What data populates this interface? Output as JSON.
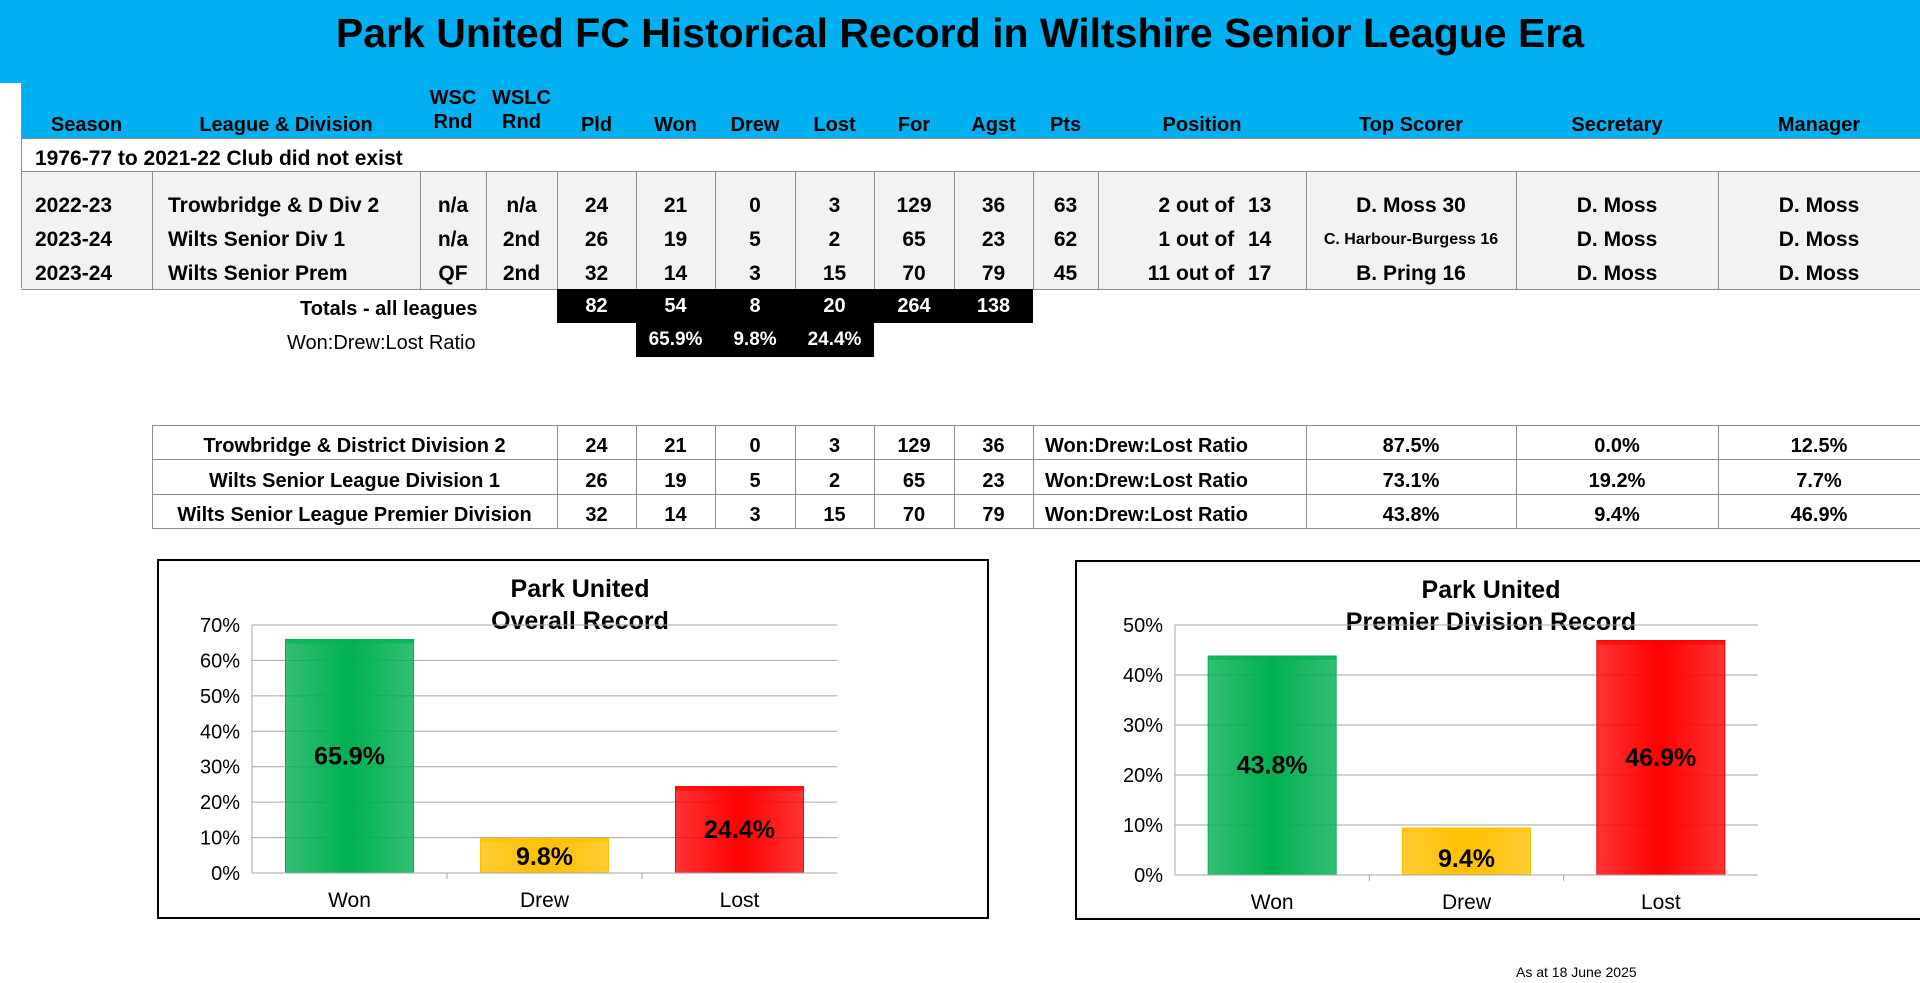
{
  "title": "Park United FC Historical Record in Wiltshire Senior League Era",
  "columns": {
    "season": "Season",
    "league": "League & Division",
    "wsc": [
      "WSC",
      "Rnd"
    ],
    "wslc": [
      "WSLC",
      "Rnd"
    ],
    "pld": "Pld",
    "won": "Won",
    "drew": "Drew",
    "lost": "Lost",
    "for": "For",
    "agst": "Agst",
    "pts": "Pts",
    "position": "Position",
    "top_scorer": "Top Scorer",
    "secretary": "Secretary",
    "manager": "Manager"
  },
  "note": "1976-77 to 2021-22 Club did not exist",
  "rows": [
    {
      "season": "2022-23",
      "league": "Trowbridge & D Div 2",
      "wsc": "n/a",
      "wslc": "n/a",
      "pld": "24",
      "won": "21",
      "drew": "0",
      "lost": "3",
      "for": "129",
      "agst": "36",
      "pts": "63",
      "pos": "2",
      "of_label": "out of",
      "total": "13",
      "scorer": "D. Moss 30",
      "secretary": "D. Moss",
      "manager": "D. Moss"
    },
    {
      "season": "2023-24",
      "league": "Wilts Senior Div 1",
      "wsc": "n/a",
      "wslc": "2nd",
      "pld": "26",
      "won": "19",
      "drew": "5",
      "lost": "2",
      "for": "65",
      "agst": "23",
      "pts": "62",
      "pos": "1",
      "of_label": "out of",
      "total": "14",
      "scorer": "C. Harbour-Burgess 16",
      "secretary": "D. Moss",
      "manager": "D. Moss"
    },
    {
      "season": "2023-24",
      "league": "Wilts Senior Prem",
      "wsc": "QF",
      "wslc": "2nd",
      "pld": "32",
      "won": "14",
      "drew": "3",
      "lost": "15",
      "for": "70",
      "agst": "79",
      "pts": "45",
      "pos": "11",
      "of_label": "out of",
      "total": "17",
      "scorer": "B. Pring 16",
      "secretary": "D. Moss",
      "manager": "D. Moss"
    }
  ],
  "totals": {
    "label": "Totals - all leagues",
    "pld": "82",
    "won": "54",
    "drew": "8",
    "lost": "20",
    "for": "264",
    "agst": "138"
  },
  "ratio": {
    "label": "Won:Drew:Lost Ratio",
    "won": "65.9%",
    "drew": "9.8%",
    "lost": "24.4%"
  },
  "summary": [
    {
      "division": "Trowbridge & District Division 2",
      "pld": "24",
      "won": "21",
      "drew": "0",
      "lost": "3",
      "for": "129",
      "agst": "36",
      "label": "Won:Drew:Lost Ratio",
      "won_pct": "87.5%",
      "drew_pct": "0.0%",
      "lost_pct": "12.5%"
    },
    {
      "division": "Wilts Senior League Division 1",
      "pld": "26",
      "won": "19",
      "drew": "5",
      "lost": "2",
      "for": "65",
      "agst": "23",
      "label": "Won:Drew:Lost Ratio",
      "won_pct": "73.1%",
      "drew_pct": "19.2%",
      "lost_pct": "7.7%"
    },
    {
      "division": "Wilts Senior League Premier Division",
      "pld": "32",
      "won": "14",
      "drew": "3",
      "lost": "15",
      "for": "70",
      "agst": "79",
      "label": "Won:Drew:Lost Ratio",
      "won_pct": "43.8%",
      "drew_pct": "9.4%",
      "lost_pct": "46.9%"
    }
  ],
  "colors": {
    "header": "#00b0f0",
    "won": "#00b050",
    "drew": "#ffc000",
    "lost": "#ff0000",
    "row_band": "#f2f2f2"
  },
  "chart_data": [
    {
      "type": "bar",
      "title": [
        "Park United",
        "Overall Record"
      ],
      "categories": [
        "Won",
        "Drew",
        "Lost"
      ],
      "values": [
        65.9,
        9.8,
        24.4
      ],
      "value_labels": [
        "65.9%",
        "9.8%",
        "24.4%"
      ],
      "ylim": [
        0,
        70
      ],
      "yticks": [
        0,
        10,
        20,
        30,
        40,
        50,
        60,
        70
      ],
      "ytick_labels": [
        "0%",
        "10%",
        "20%",
        "30%",
        "40%",
        "50%",
        "60%",
        "70%"
      ],
      "colors": [
        "#00b050",
        "#ffc000",
        "#ff0000"
      ],
      "grid": true
    },
    {
      "type": "bar",
      "title": [
        "Park United",
        "Premier Division Record"
      ],
      "categories": [
        "Won",
        "Drew",
        "Lost"
      ],
      "values": [
        43.8,
        9.4,
        46.9
      ],
      "value_labels": [
        "43.8%",
        "9.4%",
        "46.9%"
      ],
      "ylim": [
        0,
        50
      ],
      "yticks": [
        0,
        10,
        20,
        30,
        40,
        50
      ],
      "ytick_labels": [
        "0%",
        "10%",
        "20%",
        "30%",
        "40%",
        "50%"
      ],
      "colors": [
        "#00b050",
        "#ffc000",
        "#ff0000"
      ],
      "grid": true
    }
  ],
  "as_at": "As at 18 June 2025"
}
